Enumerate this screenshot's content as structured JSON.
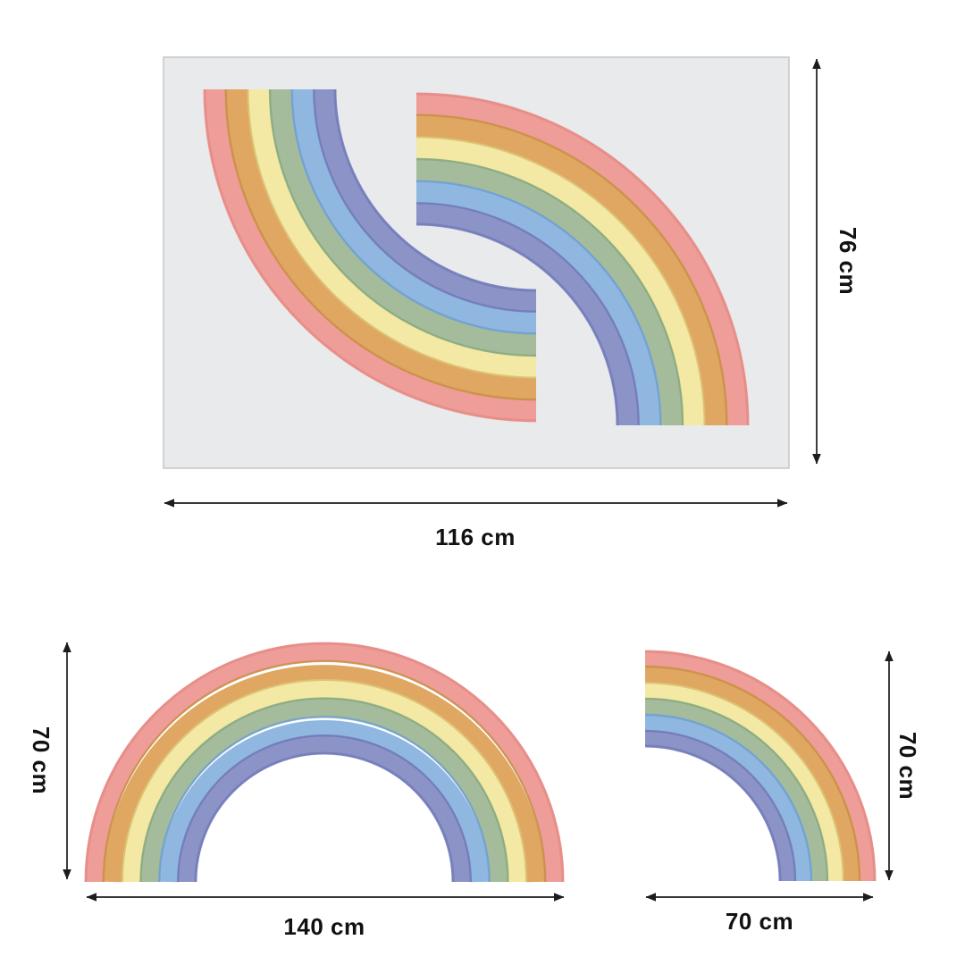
{
  "page": {
    "background": "#ffffff"
  },
  "sheet": {
    "fill": "#e8eaeb",
    "border": "#c4c7c9"
  },
  "rainbow": {
    "bands": [
      {
        "name": "red",
        "fill": "#ef9d98",
        "edge": "#e08480"
      },
      {
        "name": "orange",
        "fill": "#dfa762",
        "edge": "#c68e43"
      },
      {
        "name": "yellow",
        "fill": "#f3e9a4",
        "edge": "#d9b96a"
      },
      {
        "name": "green",
        "fill": "#a4bc9c",
        "edge": "#86a87d"
      },
      {
        "name": "blue",
        "fill": "#8fb7e0",
        "edge": "#6c9dd1"
      },
      {
        "name": "purple",
        "fill": "#8c94c7",
        "edge": "#6f77b8"
      }
    ]
  },
  "dimensions": {
    "sheet_height": {
      "label": "76 cm"
    },
    "sheet_width": {
      "label": "116 cm"
    },
    "full_rainbow_height": {
      "label": "70 cm"
    },
    "full_rainbow_width": {
      "label": "140 cm"
    },
    "half_rainbow_height": {
      "label": "70 cm"
    },
    "half_rainbow_width": {
      "label": "70 cm"
    }
  },
  "accent": {
    "line_color": "#1c1c1c",
    "text_color": "#111111"
  }
}
